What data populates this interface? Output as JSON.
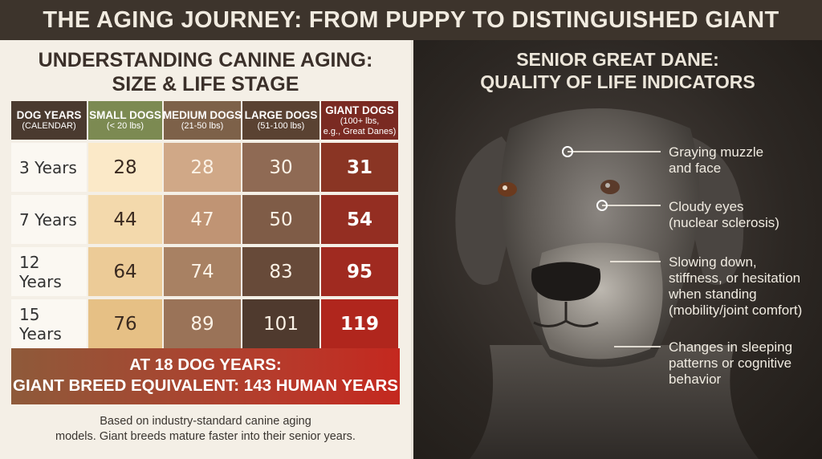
{
  "banner": {
    "title": "THE AGING JOURNEY: FROM PUPPY TO DISTINGUISHED GIANT"
  },
  "left_panel": {
    "title_line1": "UNDERSTANDING CANINE AGING:",
    "title_line2": "SIZE & LIFE STAGE",
    "columns": [
      {
        "title": "DOG YEARS",
        "subtitle": "(CALENDAR)",
        "color": "#4a3a2f"
      },
      {
        "title": "SMALL DOGS",
        "subtitle": "(< 20 lbs)",
        "color": "#7c8a52"
      },
      {
        "title": "MEDIUM DOGS",
        "subtitle": "(21-50 lbs)",
        "color": "#7d6149"
      },
      {
        "title": "LARGE DOGS",
        "subtitle": "(51-100 lbs)",
        "color": "#5a4232"
      },
      {
        "title": "GIANT DOGS",
        "subtitle": "(100+ lbs,",
        "subtitle2": "e.g., Great Danes)",
        "color": "#7a2a22"
      }
    ],
    "rows": [
      {
        "label": "3 Years",
        "values": [
          "28",
          "28",
          "30",
          "31"
        ]
      },
      {
        "label": "7 Years",
        "values": [
          "44",
          "47",
          "50",
          "54"
        ]
      },
      {
        "label": "12 Years",
        "values": [
          "64",
          "74",
          "83",
          "95"
        ]
      },
      {
        "label": "15 Years",
        "values": [
          "76",
          "89",
          "101",
          "119"
        ]
      }
    ],
    "cell_colors": [
      [
        "#fbe9c8",
        "#d0a887",
        "#8f6a54",
        "#8a3524"
      ],
      [
        "#f3d9ac",
        "#c09474",
        "#7f5c47",
        "#942e22"
      ],
      [
        "#eccb97",
        "#a88163",
        "#674a39",
        "#a02a20"
      ],
      [
        "#e6c085",
        "#9a7358",
        "#4f3a2e",
        "#b0261d"
      ]
    ],
    "cell_text_colors": [
      "#3a2a20",
      "#fbf2e6",
      "#fbf2e6"
    ],
    "callout_line1": "AT 18 DOG YEARS:",
    "callout_line2": "GIANT BREED EQUIVALENT: 143 HUMAN YEARS",
    "footnote_line1": "Based on industry-standard canine aging",
    "footnote_line2": "models. Giant breeds mature faster into their senior years."
  },
  "right_panel": {
    "title_line1": "SENIOR GREAT DANE:",
    "title_line2": "QUALITY OF LIFE INDICATORS",
    "indicators": [
      {
        "line1": "Graying muzzle",
        "line2": "and face"
      },
      {
        "line1": "Cloudy eyes",
        "line2": "(nuclear sclerosis)"
      },
      {
        "line1": "Slowing down,",
        "line2": "stiffness, or hesitation",
        "line3": "when standing",
        "line4": "(mobility/joint comfort)"
      },
      {
        "line1": "Changes in sleeping",
        "line2": "patterns or cognitive",
        "line3": "behavior"
      }
    ]
  }
}
